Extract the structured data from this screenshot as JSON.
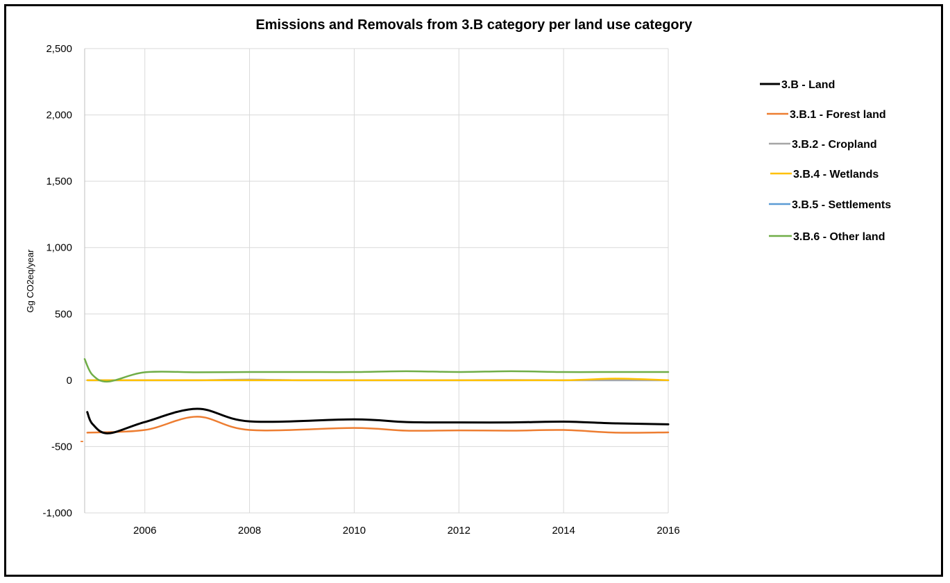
{
  "chart_data": {
    "type": "line",
    "title": "Emissions and Removals from 3.B category per land use category",
    "xlabel": "",
    "ylabel": "Gg CO2eq/year",
    "xlim": [
      2004.85,
      2016
    ],
    "ylim": [
      -1000,
      2500
    ],
    "y_ticks": [
      -1000,
      -500,
      0,
      500,
      1000,
      1500,
      2000,
      2500
    ],
    "y_tick_labels": [
      "-1,000",
      "-500",
      "0",
      "500",
      "1,000",
      "1,500",
      "2,000",
      "2,500"
    ],
    "x_ticks": [
      2006,
      2008,
      2010,
      2012,
      2014,
      2016
    ],
    "x_tick_labels": [
      "2006",
      "2008",
      "2010",
      "2012",
      "2014",
      "2016"
    ],
    "grid": "vertical and horizontal",
    "legend_position": "right",
    "series": [
      {
        "name": "3.B - Land",
        "color": "#000000",
        "points": [
          [
            2004.9,
            -240
          ],
          [
            2005,
            -330
          ],
          [
            2005.3,
            -400
          ],
          [
            2006,
            -315
          ],
          [
            2007,
            -215
          ],
          [
            2008,
            -310
          ],
          [
            2010,
            -295
          ],
          [
            2011,
            -315
          ],
          [
            2012,
            -318
          ],
          [
            2013,
            -318
          ],
          [
            2014,
            -312
          ],
          [
            2015,
            -325
          ],
          [
            2016,
            -332
          ]
        ]
      },
      {
        "name": "3.B.1 - Forest land",
        "color": "#ED7D31",
        "points": [
          [
            2004.9,
            -395
          ],
          [
            2006,
            -375
          ],
          [
            2007,
            -275
          ],
          [
            2008,
            -375
          ],
          [
            2010,
            -360
          ],
          [
            2011,
            -380
          ],
          [
            2012,
            -378
          ],
          [
            2013,
            -380
          ],
          [
            2014,
            -375
          ],
          [
            2015,
            -395
          ],
          [
            2016,
            -393
          ]
        ]
      },
      {
        "name": "3.B.2 - Cropland",
        "color": "#A5A5A5",
        "points": [
          [
            2004.9,
            0
          ],
          [
            2006,
            0
          ],
          [
            2007,
            0
          ],
          [
            2008,
            5
          ],
          [
            2009,
            0
          ],
          [
            2010,
            0
          ],
          [
            2011,
            0
          ],
          [
            2012,
            0
          ],
          [
            2013,
            2
          ],
          [
            2014,
            0
          ],
          [
            2015,
            0
          ],
          [
            2016,
            0
          ]
        ]
      },
      {
        "name": "3.B.4 - Wetlands",
        "color": "#FFC000",
        "points": [
          [
            2004.9,
            0
          ],
          [
            2006,
            0
          ],
          [
            2008,
            0
          ],
          [
            2010,
            0
          ],
          [
            2012,
            0
          ],
          [
            2014,
            0
          ],
          [
            2015,
            12
          ],
          [
            2016,
            0
          ]
        ]
      },
      {
        "name": "3.B.5 - Settlements",
        "color": "#5B9BD5",
        "points": [
          [
            2004.9,
            0
          ],
          [
            2006,
            0
          ],
          [
            2008,
            0
          ],
          [
            2010,
            0
          ],
          [
            2012,
            0
          ],
          [
            2014,
            0
          ],
          [
            2016,
            0
          ]
        ]
      },
      {
        "name": "3.B.6 - Other land",
        "color": "#70AD47",
        "points": [
          [
            2004.85,
            160
          ],
          [
            2005,
            40
          ],
          [
            2005.3,
            -10
          ],
          [
            2006,
            60
          ],
          [
            2007,
            60
          ],
          [
            2008,
            62
          ],
          [
            2009,
            62
          ],
          [
            2010,
            62
          ],
          [
            2011,
            68
          ],
          [
            2012,
            62
          ],
          [
            2013,
            68
          ],
          [
            2014,
            62
          ],
          [
            2015,
            62
          ],
          [
            2016,
            62
          ]
        ]
      }
    ],
    "annotations": [
      {
        "text": "-",
        "color": "#ED7D31",
        "x": 2004.85,
        "y": -455
      }
    ]
  }
}
